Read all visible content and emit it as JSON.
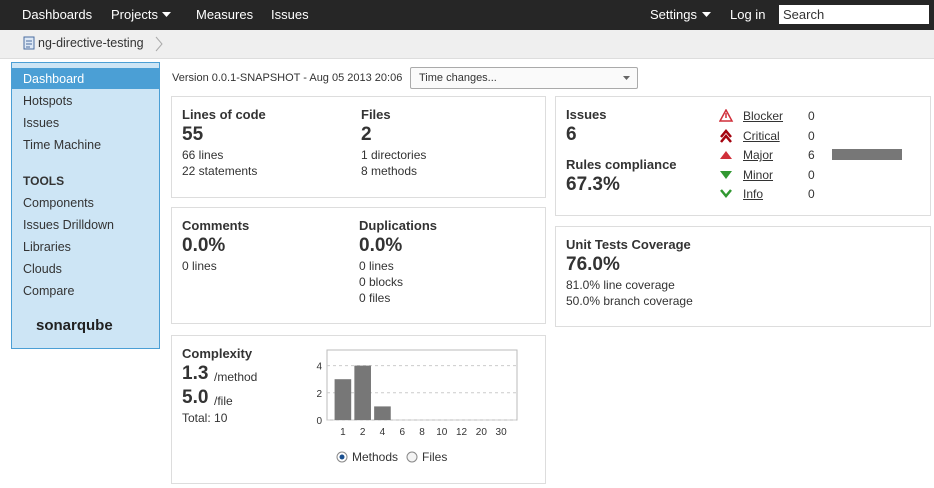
{
  "nav": {
    "items": [
      "Dashboards",
      "Projects",
      "Measures",
      "Issues"
    ],
    "right": [
      "Settings",
      "Log in"
    ],
    "search": "Search"
  },
  "breadcrumb": "ng-directive-testing",
  "sidebar": {
    "items": [
      "Dashboard",
      "Hotspots",
      "Issues",
      "Time Machine"
    ],
    "tools_heading": "TOOLS",
    "tools": [
      "Components",
      "Issues Drilldown",
      "Libraries",
      "Clouds",
      "Compare"
    ],
    "logo": "sonarqube"
  },
  "version": "Version 0.0.1-SNAPSHOT - Aug 05 2013 20:06",
  "time_select": "Time changes...",
  "widgets": {
    "size": {
      "loc_label": "Lines of code",
      "loc": "55",
      "loc_details": [
        "66 lines",
        "22 statements"
      ],
      "files_label": "Files",
      "files": "2",
      "files_details": [
        "1 directories",
        "8 methods"
      ]
    },
    "comments": {
      "label": "Comments",
      "value": "0.0%",
      "details": [
        "0 lines"
      ]
    },
    "duplications": {
      "label": "Duplications",
      "value": "0.0%",
      "details": [
        "0 lines",
        "0 blocks",
        "0 files"
      ]
    },
    "complexity": {
      "label": "Complexity",
      "per_method": "1.3",
      "per_method_unit": "/method",
      "per_file": "5.0",
      "per_file_unit": "/file",
      "total": "Total: 10",
      "chart": {
        "type": "bar",
        "categories": [
          "1",
          "2",
          "4",
          "6",
          "8",
          "10",
          "12",
          "20",
          "30"
        ],
        "values": [
          3,
          4,
          1,
          0,
          0,
          0,
          0,
          0,
          0
        ],
        "ylim": [
          0,
          5
        ],
        "yticks": [
          0,
          2,
          4
        ],
        "color": "#777777",
        "grid": true
      },
      "options": [
        "Methods",
        "Files"
      ]
    },
    "issues": {
      "label": "Issues",
      "value": "6",
      "compliance_label": "Rules compliance",
      "compliance": "67.3%",
      "severities": [
        {
          "name": "Blocker",
          "count": 0
        },
        {
          "name": "Critical",
          "count": 0
        },
        {
          "name": "Major",
          "count": 6
        },
        {
          "name": "Minor",
          "count": 0
        },
        {
          "name": "Info",
          "count": 0
        }
      ],
      "bar_color": "#777777"
    },
    "coverage": {
      "label": "Unit Tests Coverage",
      "value": "76.0%",
      "details": [
        "81.0% line coverage",
        "50.0% branch coverage"
      ]
    }
  }
}
